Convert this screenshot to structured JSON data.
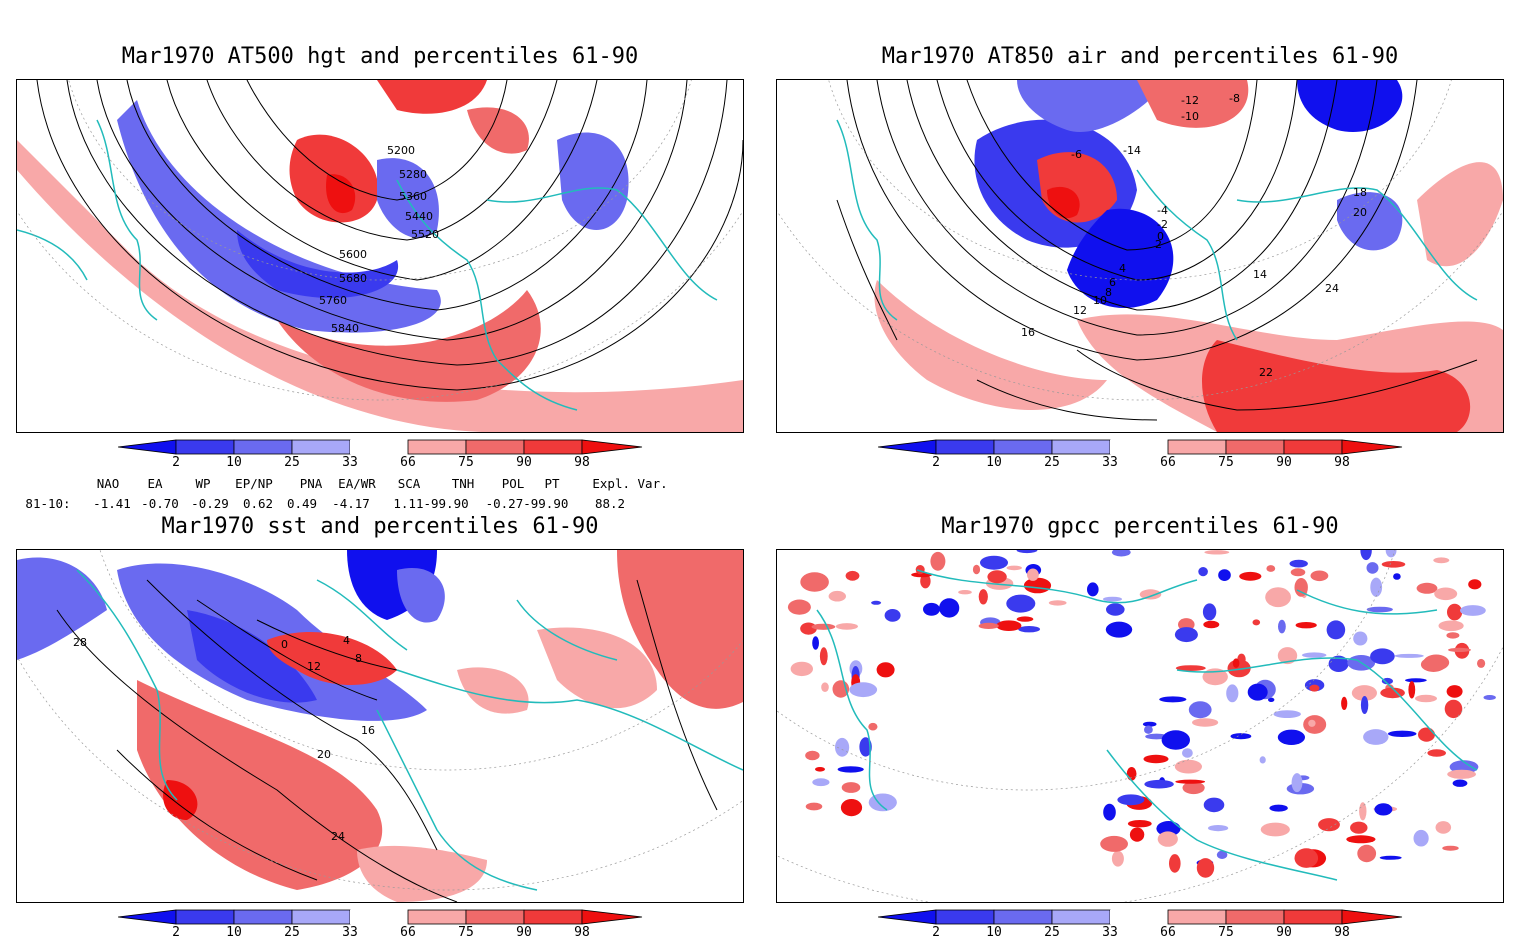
{
  "panels": [
    {
      "id": "hgt",
      "title": "Mar1970 AT500 hgt and percentiles 61-90",
      "contour_labels": [
        "5200",
        "5280",
        "5360",
        "5440",
        "5520",
        "5600",
        "5680",
        "5760",
        "5840"
      ]
    },
    {
      "id": "air",
      "title": "Mar1970 AT850 air and percentiles 61-90",
      "contour_labels": [
        "-12",
        "-10",
        "-8",
        "-6",
        "-14",
        "-4",
        "-2",
        "0",
        "2",
        "4",
        "6",
        "8",
        "10",
        "12",
        "14",
        "16",
        "18",
        "20",
        "22",
        "24"
      ]
    },
    {
      "id": "sst",
      "title": "Mar1970 sst and percentiles 61-90",
      "contour_labels": [
        "0",
        "4",
        "8",
        "12",
        "16",
        "20",
        "24",
        "28"
      ]
    },
    {
      "id": "gpcc",
      "title": "Mar1970 gpcc percentiles 61-90",
      "contour_labels": []
    }
  ],
  "colorbar": {
    "labels": [
      "2",
      "10",
      "25",
      "33",
      "66",
      "75",
      "90",
      "98"
    ],
    "colors": {
      "blue": [
        "#1010ee",
        "#3a3aee",
        "#6a6af0",
        "#a8a8f8"
      ],
      "red": [
        "#f8a8a8",
        "#f06a6a",
        "#f03a3a",
        "#ee1010"
      ]
    }
  },
  "indices": {
    "headers": [
      "NAO",
      "EA",
      "WP",
      "EP/NP",
      "PNA",
      "EA/WR",
      "SCA",
      "TNH",
      "POL",
      "PT",
      "Expl. Var."
    ],
    "row_label": "81-10:",
    "values": [
      "-1.41",
      "-0.70",
      "-0.29",
      "0.62",
      "0.49",
      "-4.17",
      "1.11-99.90",
      "-0.27-99.90",
      "88.2"
    ]
  },
  "style": {
    "coast": "#22bbbb",
    "contour": "#000000",
    "grid": "#999999"
  }
}
